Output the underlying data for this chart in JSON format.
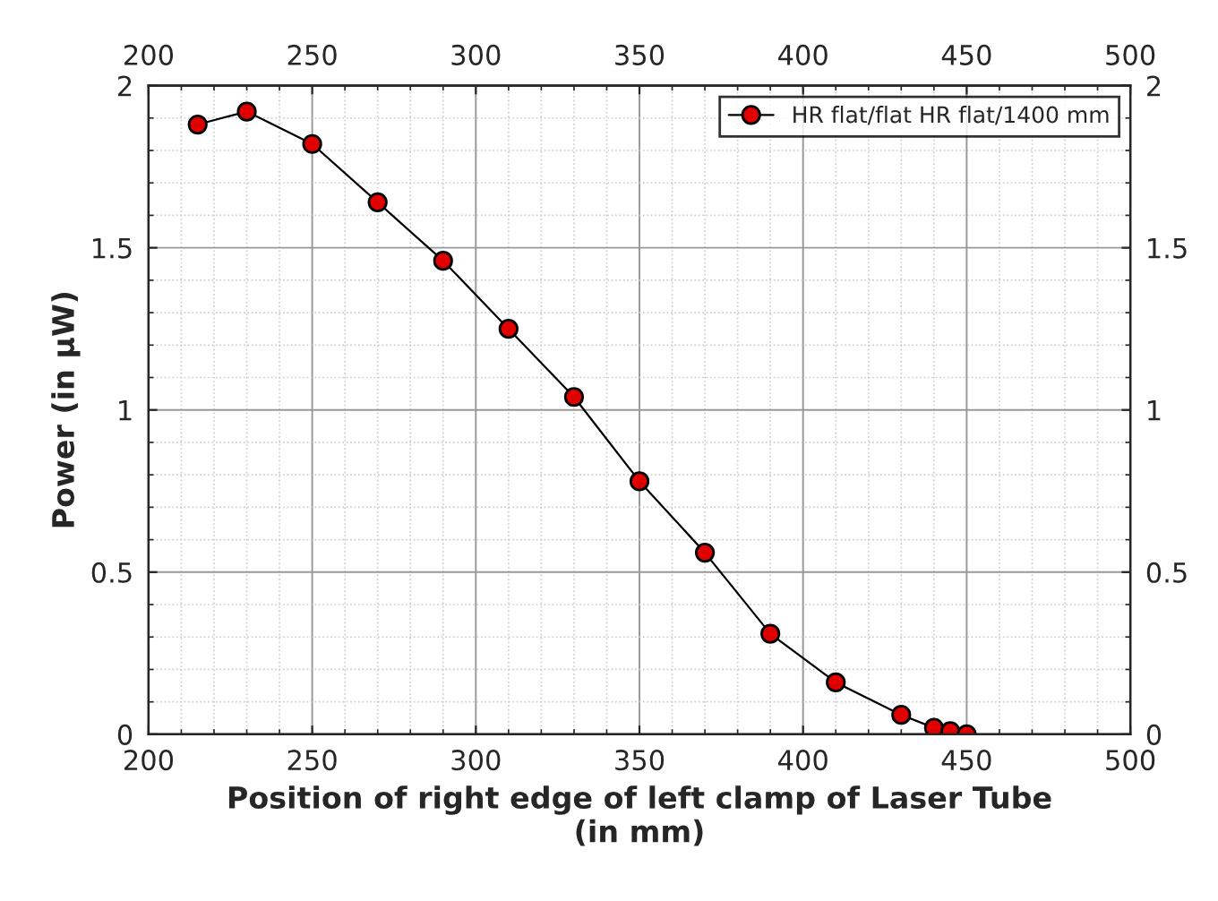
{
  "chart_data": {
    "type": "line",
    "xlabel": "Position of right edge of left clamp of Laser Tube\n(in mm)",
    "ylabel": "Power (in µW)",
    "x": [
      215,
      230,
      250,
      270,
      290,
      310,
      330,
      350,
      370,
      390,
      410,
      430,
      440,
      445,
      450
    ],
    "series": [
      {
        "name": "HR flat/flat HR flat/1400 mm",
        "color": "#e00000",
        "values": [
          1.88,
          1.92,
          1.82,
          1.64,
          1.46,
          1.25,
          1.04,
          0.78,
          0.56,
          0.31,
          0.16,
          0.06,
          0.02,
          0.01,
          0.0
        ]
      }
    ],
    "xlim": [
      200,
      500
    ],
    "xticks": [
      200,
      250,
      300,
      350,
      400,
      450,
      500
    ],
    "x2lim": [
      200,
      500
    ],
    "x2ticks": [
      200,
      250,
      300,
      350,
      400,
      450,
      500
    ],
    "ylim": [
      0,
      2
    ],
    "yticks": [
      0,
      0.5,
      1,
      1.5,
      2
    ],
    "y2lim": [
      0,
      2
    ],
    "y2ticks": [
      0,
      0.5,
      1,
      1.5,
      2
    ],
    "grid": true,
    "legend": "top right",
    "marker": "circle",
    "line_style": "solid"
  }
}
